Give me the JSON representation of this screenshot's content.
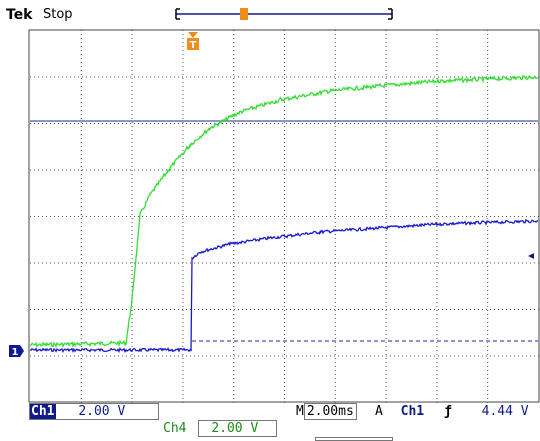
{
  "header": {
    "brand": "Tek",
    "status": "Stop"
  },
  "trigger_marker": {
    "label": "T"
  },
  "ground_marker": {
    "label": "1"
  },
  "channels": [
    {
      "name": "Ch1",
      "scale": "2.00 V",
      "color": "#1a1acc"
    },
    {
      "name": "Ch4",
      "scale": "2.00 V",
      "color": "#33dd33"
    }
  ],
  "timebase": {
    "prefix": "M",
    "value": "2.00ms"
  },
  "trigger": {
    "mode": "A",
    "source": "Ch1",
    "slope_icon": "rising-edge-icon",
    "slope_glyph": "ƒ",
    "level": "4.44 V"
  }
}
